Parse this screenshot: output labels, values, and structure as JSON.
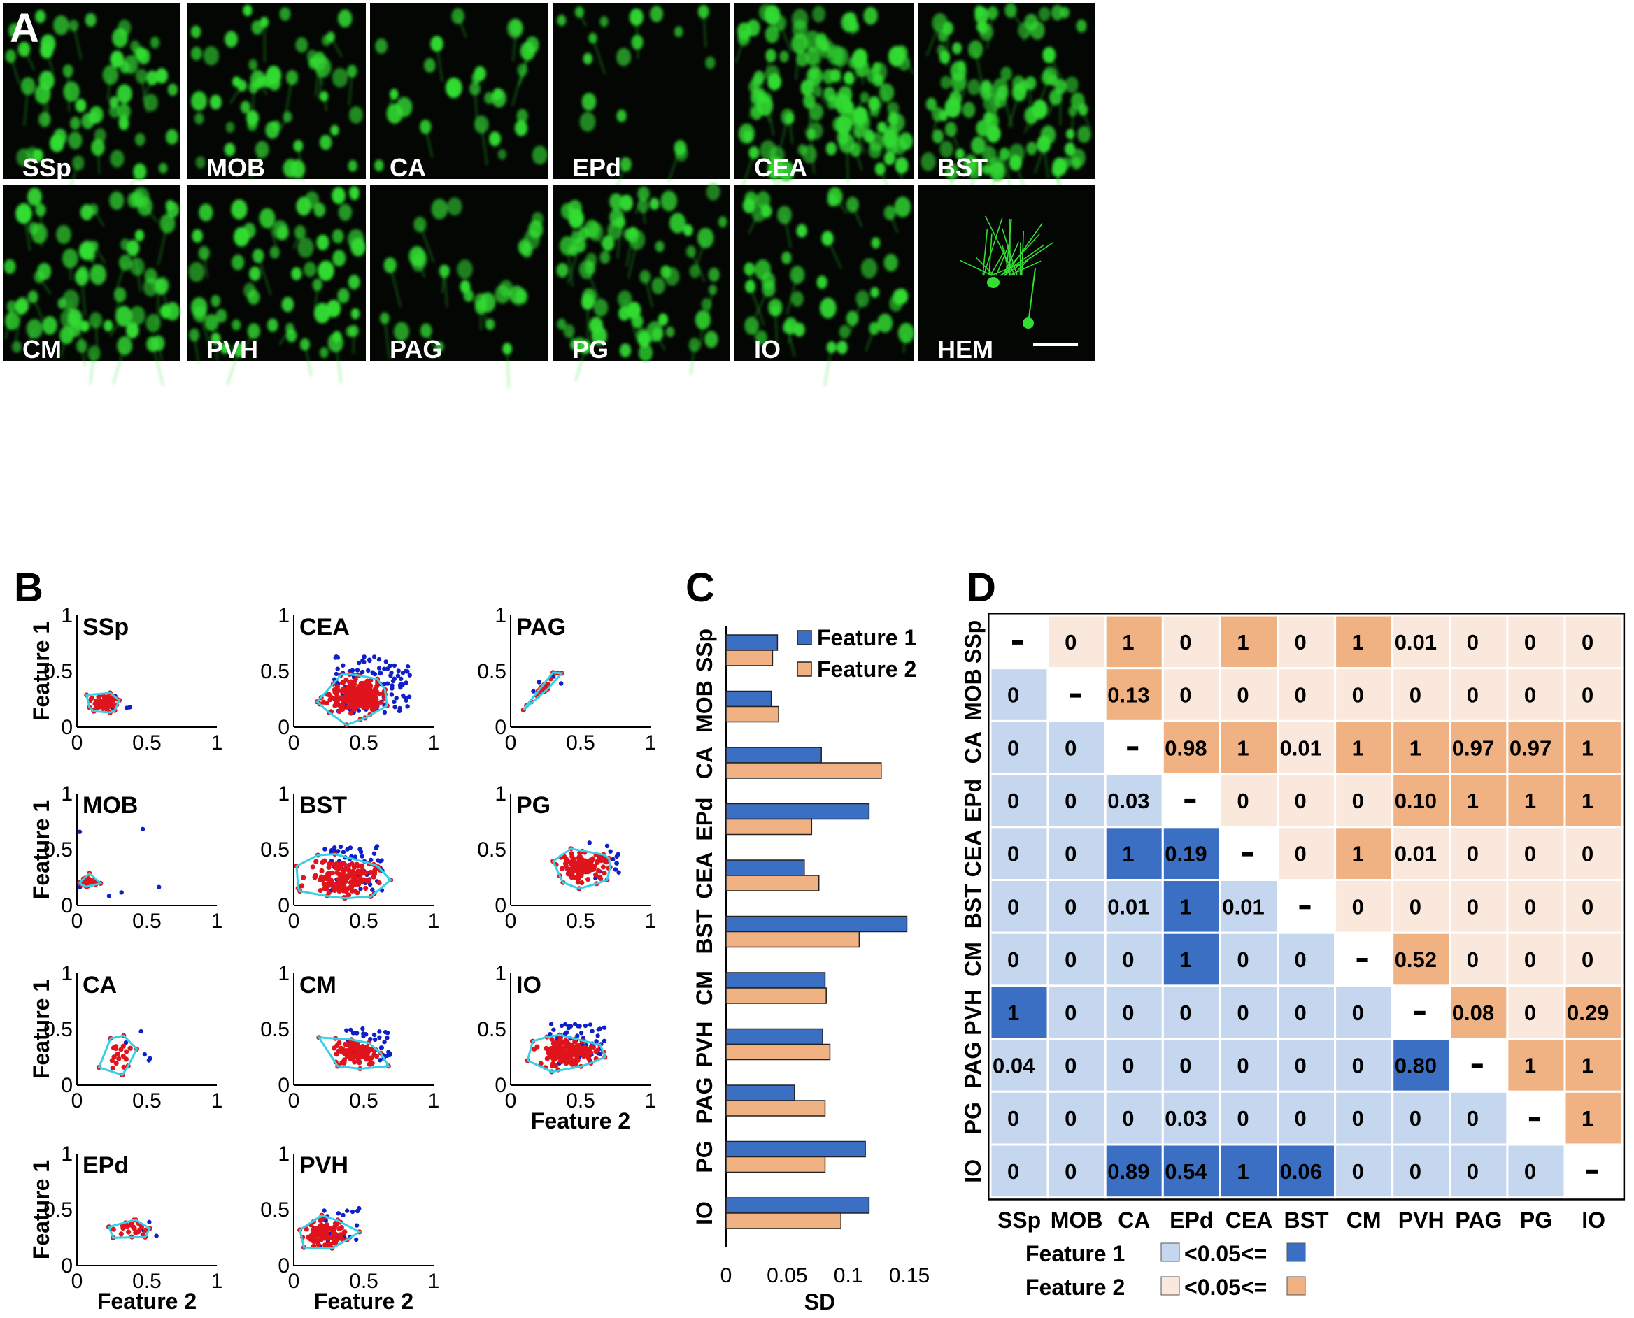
{
  "panels": {
    "a": "A",
    "b": "B",
    "c": "C",
    "d": "D"
  },
  "panel_a": {
    "labels": [
      "SSp",
      "MOB",
      "CA",
      "EPd",
      "CEA",
      "BST",
      "CM",
      "PVH",
      "PAG",
      "PG",
      "IO",
      "HEM"
    ]
  },
  "colors": {
    "feature1": "#3a6fc4",
    "feature2": "#f0b183",
    "feature1_light": "#c5d6ef",
    "feature2_light": "#fbe8dc",
    "scatter_all": "#1020c8",
    "scatter_core": "#e0141c",
    "hull": "#35d0e8",
    "micrograph": "#33dd33"
  },
  "chart_data": [
    {
      "panel": "B",
      "type": "scatter",
      "xlabel": "Feature 2",
      "ylabel": "Feature 1",
      "xlim": [
        0,
        1
      ],
      "ylim": [
        0,
        1
      ],
      "xticks": [
        "0",
        "0.5",
        "1"
      ],
      "yticks": [
        "0",
        "0.5",
        "1"
      ],
      "subplots": [
        {
          "title": "SSp"
        },
        {
          "title": "CEA"
        },
        {
          "title": "PAG"
        },
        {
          "title": "MOB"
        },
        {
          "title": "BST"
        },
        {
          "title": "PG"
        },
        {
          "title": "CA"
        },
        {
          "title": "CM"
        },
        {
          "title": "IO"
        },
        {
          "title": "EPd"
        },
        {
          "title": "PVH"
        }
      ]
    },
    {
      "panel": "C",
      "type": "bar",
      "orientation": "horizontal",
      "categories": [
        "SSp",
        "MOB",
        "CA",
        "EPd",
        "CEA",
        "BST",
        "CM",
        "PVH",
        "PAG",
        "PG",
        "IO"
      ],
      "series": [
        {
          "name": "Feature 1",
          "values": [
            0.042,
            0.037,
            0.078,
            0.117,
            0.064,
            0.148,
            0.081,
            0.079,
            0.056,
            0.114,
            0.117
          ]
        },
        {
          "name": "Feature 2",
          "values": [
            0.038,
            0.043,
            0.127,
            0.07,
            0.076,
            0.109,
            0.082,
            0.085,
            0.081,
            0.081,
            0.094
          ]
        }
      ],
      "xlabel": "SD",
      "xlim": [
        0,
        0.15
      ],
      "xticks": [
        "0",
        "0.05",
        "0.1",
        "0.15"
      ],
      "legend": "top-right"
    },
    {
      "panel": "D",
      "type": "heatmap",
      "labels": [
        "SSp",
        "MOB",
        "CA",
        "EPd",
        "CEA",
        "BST",
        "CM",
        "PVH",
        "PAG",
        "PG",
        "IO"
      ],
      "matrix": [
        [
          "-",
          "0",
          "1",
          "0",
          "1",
          "0",
          "1",
          "0.01",
          "0",
          "0",
          "0"
        ],
        [
          "0",
          "-",
          "0.13",
          "0",
          "0",
          "0",
          "0",
          "0",
          "0",
          "0",
          "0"
        ],
        [
          "0",
          "0",
          "-",
          "0.98",
          "1",
          "0.01",
          "1",
          "1",
          "0.97",
          "0.97",
          "1"
        ],
        [
          "0",
          "0",
          "0.03",
          "-",
          "0",
          "0",
          "0",
          "0.10",
          "1",
          "1",
          "1"
        ],
        [
          "0",
          "0",
          "1",
          "0.19",
          "-",
          "0",
          "1",
          "0.01",
          "0",
          "0",
          "0"
        ],
        [
          "0",
          "0",
          "0.01",
          "1",
          "0.01",
          "-",
          "0",
          "0",
          "0",
          "0",
          "0"
        ],
        [
          "0",
          "0",
          "0",
          "1",
          "0",
          "0",
          "-",
          "0.52",
          "0",
          "0",
          "0"
        ],
        [
          "1",
          "0",
          "0",
          "0",
          "0",
          "0",
          "0",
          "-",
          "0.08",
          "0",
          "0.29"
        ],
        [
          "0.04",
          "0",
          "0",
          "0",
          "0",
          "0",
          "0",
          "0.80",
          "-",
          "1",
          "1"
        ],
        [
          "0",
          "0",
          "0",
          "0.03",
          "0",
          "0",
          "0",
          "0",
          "0",
          "-",
          "1"
        ],
        [
          "0",
          "0",
          "0.89",
          "0.54",
          "1",
          "0.06",
          "0",
          "0",
          "0",
          "0",
          "-"
        ]
      ],
      "upper_triangle": "Feature 2",
      "lower_triangle": "Feature 1",
      "threshold": 0.05,
      "legend": [
        {
          "name": "Feature 1",
          "text": "<0.05<="
        },
        {
          "name": "Feature 2",
          "text": "<0.05<="
        }
      ]
    }
  ]
}
